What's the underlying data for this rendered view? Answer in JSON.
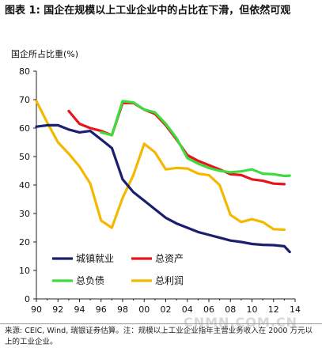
{
  "header": {
    "title": "图表 1: 国企在规模以上工业企业中的占比在下滑，但依然可观"
  },
  "footer": {
    "note": "来源: CEIC, Wind, 瑞银证券估算。注：规模以上工业企业指年主营业务收入在 2000 万元以上的工业企业。"
  },
  "watermark": "CNMN.COM.CN",
  "colors": {
    "城镇就业": "#1a1f6e",
    "总资产": "#e8141b",
    "总负债": "#3ddc3d",
    "总利润": "#f5b800"
  },
  "chart_data": {
    "type": "line",
    "title": "",
    "xlabel": "",
    "ylabel": "国企所占比重(%)",
    "ylim": [
      0,
      80
    ],
    "yticks": [
      0,
      10,
      20,
      30,
      40,
      50,
      60,
      70,
      80
    ],
    "xlim": [
      1990,
      2014
    ],
    "xticks": [
      "90",
      "92",
      "94",
      "96",
      "98",
      "00",
      "02",
      "04",
      "06",
      "08",
      "10",
      "12",
      "14"
    ],
    "grid": false,
    "legend": "bottom-left",
    "series": [
      {
        "name": "城镇就业",
        "color": "#1a1f6e",
        "points": [
          [
            1990,
            60.5
          ],
          [
            1991,
            61
          ],
          [
            1992,
            61
          ],
          [
            1993,
            59.5
          ],
          [
            1994,
            58.5
          ],
          [
            1995,
            59
          ],
          [
            1996,
            56
          ],
          [
            1997,
            53
          ],
          [
            1998,
            42
          ],
          [
            1999,
            37.5
          ],
          [
            2000,
            34.5
          ],
          [
            2001,
            31.5
          ],
          [
            2002,
            28.5
          ],
          [
            2003,
            26.5
          ],
          [
            2004,
            25
          ],
          [
            2005,
            23.5
          ],
          [
            2006,
            22.5
          ],
          [
            2007,
            21.5
          ],
          [
            2008,
            20.5
          ],
          [
            2009,
            20
          ],
          [
            2010,
            19.3
          ],
          [
            2011,
            19
          ],
          [
            2012,
            18.9
          ],
          [
            2013,
            18.5
          ],
          [
            2013.5,
            16.5
          ]
        ]
      },
      {
        "name": "总资产",
        "color": "#e8141b",
        "points": [
          [
            1993,
            66
          ],
          [
            1994,
            61.5
          ],
          [
            1995,
            60
          ],
          [
            1996,
            59
          ],
          [
            1997,
            57.5
          ],
          [
            1998,
            68.8
          ],
          [
            1999,
            68.8
          ],
          [
            2000,
            66.5
          ],
          [
            2001,
            65
          ],
          [
            2002,
            61
          ],
          [
            2003,
            56
          ],
          [
            2004,
            50.5
          ],
          [
            2005,
            48.5
          ],
          [
            2006,
            47
          ],
          [
            2007,
            45.5
          ],
          [
            2008,
            43.8
          ],
          [
            2009,
            43.5
          ],
          [
            2010,
            42
          ],
          [
            2011,
            41.5
          ],
          [
            2012,
            40.5
          ],
          [
            2013,
            40.3
          ]
        ]
      },
      {
        "name": "总负债",
        "color": "#3ddc3d",
        "points": [
          [
            1996,
            58.5
          ],
          [
            1997,
            57.5
          ],
          [
            1998,
            69.5
          ],
          [
            1999,
            69
          ],
          [
            2000,
            66.5
          ],
          [
            2001,
            65.5
          ],
          [
            2002,
            61.5
          ],
          [
            2003,
            56.5
          ],
          [
            2004,
            49.5
          ],
          [
            2005,
            47.5
          ],
          [
            2006,
            46
          ],
          [
            2007,
            45
          ],
          [
            2008,
            44.5
          ],
          [
            2009,
            44.8
          ],
          [
            2010,
            45.5
          ],
          [
            2011,
            44
          ],
          [
            2012,
            43.8
          ],
          [
            2013,
            43.2
          ],
          [
            2013.5,
            43.3
          ]
        ]
      },
      {
        "name": "总利润",
        "color": "#f5b800",
        "points": [
          [
            1990,
            69.5
          ],
          [
            1991,
            62
          ],
          [
            1992,
            55
          ],
          [
            1993,
            51
          ],
          [
            1994,
            46.5
          ],
          [
            1995,
            40.5
          ],
          [
            1996,
            27.5
          ],
          [
            1997,
            25
          ],
          [
            1998,
            35.5
          ],
          [
            1999,
            43.5
          ],
          [
            2000,
            54.5
          ],
          [
            2001,
            51.5
          ],
          [
            2002,
            45.5
          ],
          [
            2003,
            46
          ],
          [
            2004,
            45.8
          ],
          [
            2005,
            44
          ],
          [
            2006,
            43.5
          ],
          [
            2007,
            40
          ],
          [
            2008,
            29.5
          ],
          [
            2009,
            27
          ],
          [
            2010,
            28
          ],
          [
            2011,
            27
          ],
          [
            2012,
            24.5
          ],
          [
            2013,
            24.3
          ]
        ]
      }
    ]
  }
}
